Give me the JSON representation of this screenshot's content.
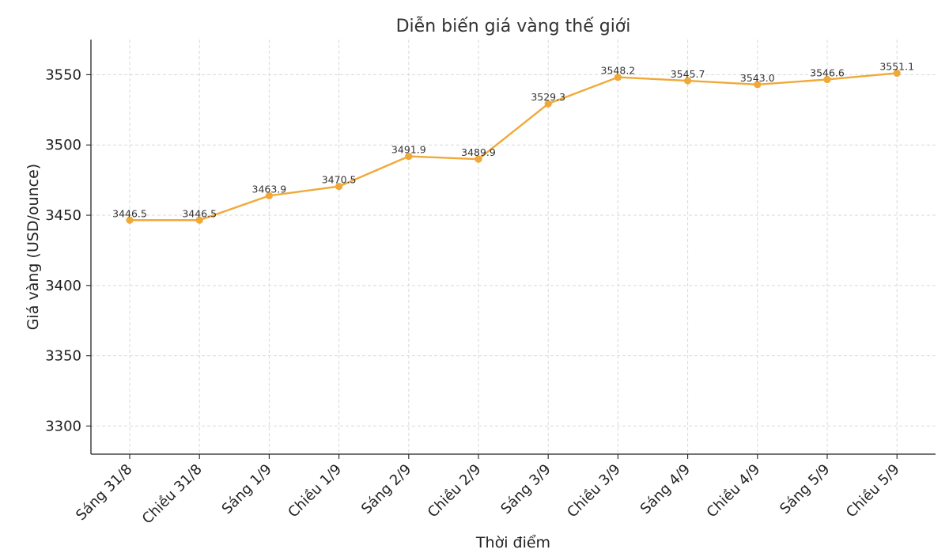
{
  "chart_data": {
    "type": "line",
    "title": "Diễn biến giá vàng thế giới",
    "xlabel": "Thời điểm",
    "ylabel": "Giá vàng (USD/ounce)",
    "categories": [
      "Sáng 31/8",
      "Chiều 31/8",
      "Sáng 1/9",
      "Chiều 1/9",
      "Sáng 2/9",
      "Chiều 2/9",
      "Sáng 3/9",
      "Chiều 3/9",
      "Sáng 4/9",
      "Chiều 4/9",
      "Sáng 5/9",
      "Chiều 5/9"
    ],
    "series": [
      {
        "values": [
          3446.5,
          3446.5,
          3463.9,
          3470.5,
          3491.9,
          3489.9,
          3529.3,
          3548.2,
          3545.7,
          3543.0,
          3546.6,
          3551.1
        ],
        "data_labels": [
          "3446.5",
          "3446.5",
          "3463.9",
          "3470.5",
          "3491.9",
          "3489.9",
          "3529.3",
          "3548.2",
          "3545.7",
          "3543.0",
          "3546.6",
          "3551.1"
        ],
        "color": "#f0a938"
      }
    ],
    "yticks": [
      3300,
      3350,
      3400,
      3450,
      3500,
      3550
    ],
    "ylim": [
      3280,
      3575
    ],
    "grid": true
  }
}
